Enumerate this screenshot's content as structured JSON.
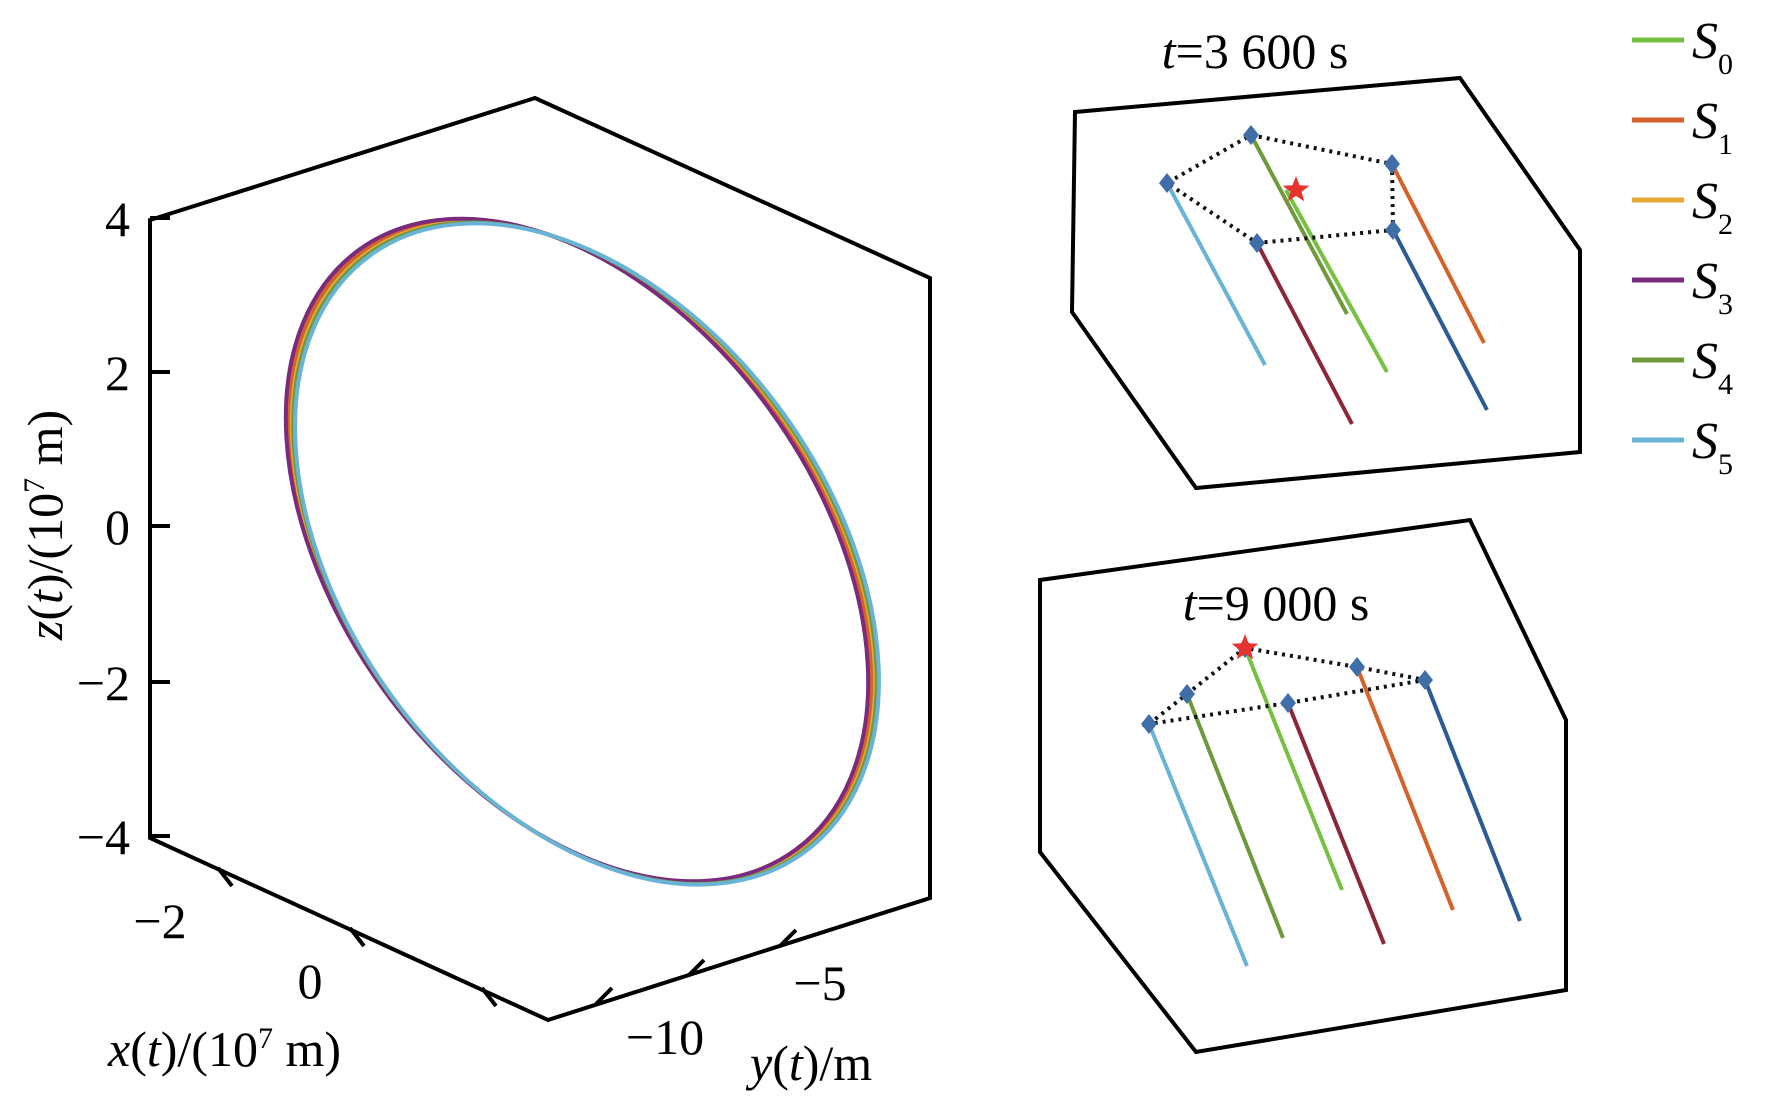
{
  "chart_data": [
    {
      "type": "line",
      "subtype": "3d-orbit",
      "xlabel": {
        "pre": "x",
        "mid": "(",
        "var": "t",
        "post": ")/(10",
        "exp": "7",
        "unit": " m)"
      },
      "ylabel": {
        "pre": "y",
        "mid": "(",
        "var": "t",
        "post": ")/m"
      },
      "zlabel": {
        "pre": "z",
        "mid": "(",
        "var": "t",
        "post": ")/(10",
        "exp": "7",
        "unit": " m)"
      },
      "z_ticks": [
        "4",
        "2",
        "0",
        "−2",
        "−4"
      ],
      "x_ticks": [
        "−2",
        "0"
      ],
      "y_ticks": [
        "−10",
        "−5"
      ],
      "zlim": [
        -4,
        4
      ],
      "series": [
        {
          "name": "S0",
          "label_base": "S",
          "label_sub": "0",
          "color": "#77c044",
          "offset": 0.0
        },
        {
          "name": "S1",
          "label_base": "S",
          "label_sub": "1",
          "color": "#d4622b",
          "offset": -2.0
        },
        {
          "name": "S2",
          "label_base": "S",
          "label_sub": "2",
          "color": "#e8a838",
          "offset": 1.5
        },
        {
          "name": "S3",
          "label_base": "S",
          "label_sub": "3",
          "color": "#7b2a7e",
          "offset": -5.0
        },
        {
          "name": "S4",
          "label_base": "S",
          "label_sub": "4",
          "color": "#6f9a3c",
          "offset": 3.0
        },
        {
          "name": "S5",
          "label_base": "S",
          "label_sub": "5",
          "color": "#69b3d6",
          "offset": 5.0
        }
      ]
    },
    {
      "type": "scatter",
      "subtype": "formation-snapshot",
      "title": {
        "var": "t",
        "eq": "=3 600 s"
      },
      "reference": {
        "marker": "star",
        "color": "#e8322e"
      },
      "satellites": [
        {
          "name": "S0",
          "color": "#77c044"
        },
        {
          "name": "S1",
          "color": "#d4622b"
        },
        {
          "name": "S2",
          "color": "#2b5a95"
        },
        {
          "name": "S3",
          "color": "#8b2737"
        },
        {
          "name": "S4",
          "color": "#6f9a3c"
        },
        {
          "name": "S5",
          "color": "#69b3d6"
        }
      ],
      "node_color": "#3f6ea8"
    },
    {
      "type": "scatter",
      "subtype": "formation-snapshot",
      "title": {
        "var": "t",
        "eq": "=9 000 s"
      },
      "reference": {
        "marker": "star",
        "color": "#e8322e"
      },
      "satellites": [
        {
          "name": "S0",
          "color": "#77c044"
        },
        {
          "name": "S1",
          "color": "#d4622b"
        },
        {
          "name": "S2",
          "color": "#2b5a95"
        },
        {
          "name": "S3",
          "color": "#8b2737"
        },
        {
          "name": "S4",
          "color": "#6f9a3c"
        },
        {
          "name": "S5",
          "color": "#69b3d6"
        }
      ],
      "node_color": "#3f6ea8"
    }
  ]
}
